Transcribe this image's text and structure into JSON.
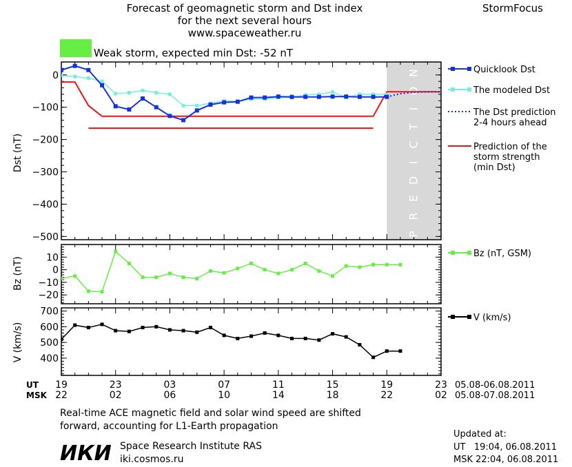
{
  "header": {
    "title_line1": "Forecast of geomagnetic storm and Dst index",
    "title_line2": "for the next several hours",
    "title_line3": "www.spaceweather.ru",
    "brand": "StormFocus",
    "storm_label": "Weak storm, expected min Dst: -52 nT",
    "storm_color": "#66ee44"
  },
  "colors": {
    "quicklook": "#1133dd",
    "modeled": "#77eedd",
    "prediction_dotted": "#1133dd",
    "storm_strength": "#ee1111",
    "bz": "#66ee44",
    "v": "#000000",
    "prediction_shade": "#d8d8d8",
    "prediction_text": "#ffffff"
  },
  "prediction_text": "PREDICTION",
  "legend": {
    "quicklook": "Quicklook Dst",
    "modeled": "The modeled Dst",
    "prediction_1": "The Dst prediction",
    "prediction_2": "2-4 hours ahead",
    "strength_1": "Prediction of the",
    "strength_2": "storm strength",
    "strength_3": "(min Dst)",
    "bz": "Bz (nT, GSM)",
    "v": "V (km/s)"
  },
  "time_axis": {
    "ut_label": "UT",
    "msk_label": "MSK",
    "ut_ticks": [
      "19",
      "23",
      "03",
      "07",
      "11",
      "15",
      "19",
      "23"
    ],
    "msk_ticks": [
      "22",
      "02",
      "06",
      "10",
      "14",
      "18",
      "22",
      "02"
    ],
    "ut_range": "05.08-06.08.2011",
    "msk_range": "05.08-07.08.2011"
  },
  "chart_data": [
    {
      "type": "line",
      "name_key": "dst",
      "ylabel": "Dst (nT)",
      "ylim": [
        -510,
        40
      ],
      "yticks": [
        0,
        -100,
        -200,
        -300,
        -400,
        -500
      ],
      "xlim": [
        19,
        47
      ],
      "prediction_start": 43,
      "series": [
        {
          "name": "Quicklook Dst",
          "x": [
            19,
            20,
            21,
            22,
            23,
            24,
            25,
            26,
            27,
            28,
            29,
            30,
            31,
            32,
            33,
            34,
            35,
            36,
            37,
            38,
            39,
            40,
            41,
            42,
            43
          ],
          "y": [
            15,
            28,
            15,
            -32,
            -97,
            -107,
            -73,
            -100,
            -127,
            -140,
            -110,
            -92,
            -85,
            -83,
            -70,
            -70,
            -67,
            -68,
            -68,
            -68,
            -67,
            -67,
            -68,
            -68,
            -68
          ]
        },
        {
          "name": "The modeled Dst",
          "x": [
            19,
            20,
            21,
            22,
            23,
            24,
            25,
            26,
            27,
            28,
            29,
            30,
            31,
            32,
            33,
            34,
            35,
            36,
            37,
            38,
            39,
            40,
            41,
            42,
            43
          ],
          "y": [
            -2,
            -5,
            -10,
            -20,
            -58,
            -55,
            -48,
            -55,
            -60,
            -95,
            -95,
            -88,
            -80,
            -82,
            -75,
            -75,
            -70,
            -70,
            -62,
            -60,
            -53,
            -70,
            -60,
            -60,
            -60
          ]
        },
        {
          "name": "The Dst prediction 2-4 hours ahead",
          "x": [
            43,
            44,
            45,
            46,
            47
          ],
          "y": [
            -68,
            -58,
            -54,
            -52,
            -52
          ]
        }
      ],
      "storm_strength_line": {
        "x": [
          19,
          20,
          21,
          22,
          42,
          43,
          47
        ],
        "y": [
          -22,
          -22,
          -95,
          -128,
          -128,
          -52,
          -52
        ]
      },
      "storm_strength_bar": {
        "x": [
          21,
          42
        ],
        "y": -165
      }
    },
    {
      "type": "line",
      "name_key": "bz",
      "ylabel": "Bz (nT)",
      "ylim": [
        -27,
        20
      ],
      "yticks": [
        10,
        0,
        -10,
        -20
      ],
      "xlim": [
        19,
        47
      ],
      "series": [
        {
          "name": "Bz (nT, GSM)",
          "x": [
            19,
            20,
            21,
            22,
            23,
            24,
            25,
            26,
            27,
            28,
            29,
            30,
            31,
            32,
            33,
            34,
            35,
            36,
            37,
            38,
            39,
            40,
            41,
            42,
            43,
            44
          ],
          "y": [
            -7,
            -5,
            -17,
            -17.5,
            14.5,
            5,
            -6,
            -6,
            -3,
            -6,
            -7,
            -1,
            -2.5,
            1,
            5,
            0,
            -3,
            0,
            5,
            -1,
            -5,
            3,
            2,
            4,
            4,
            4
          ]
        }
      ]
    },
    {
      "type": "line",
      "name_key": "v",
      "ylabel": "V (km/s)",
      "ylim": [
        290,
        720
      ],
      "yticks": [
        700,
        600,
        500,
        400
      ],
      "xlim": [
        19,
        47
      ],
      "series": [
        {
          "name": "V (km/s)",
          "x": [
            19,
            20,
            21,
            22,
            23,
            24,
            25,
            26,
            27,
            28,
            29,
            30,
            31,
            32,
            33,
            34,
            35,
            36,
            37,
            38,
            39,
            40,
            41,
            42,
            43,
            44
          ],
          "y": [
            520,
            610,
            595,
            615,
            575,
            570,
            595,
            600,
            580,
            575,
            565,
            595,
            545,
            525,
            540,
            560,
            545,
            525,
            525,
            515,
            555,
            535,
            485,
            405,
            445,
            445
          ]
        }
      ]
    }
  ],
  "footer": {
    "note_line1": "Real-time ACE magnetic field and solar wind speed are shifted",
    "note_line2": "forward, accounting for L1-Earth propagation",
    "institute_logo_text": "ИКИ",
    "institute_name": "Space Research Institute RAS",
    "institute_site": "iki.cosmos.ru",
    "updated_label": "Updated at:",
    "updated_ut": "UT   19:04, 06.08.2011",
    "updated_msk": "MSK 22:04, 06.08.2011"
  }
}
